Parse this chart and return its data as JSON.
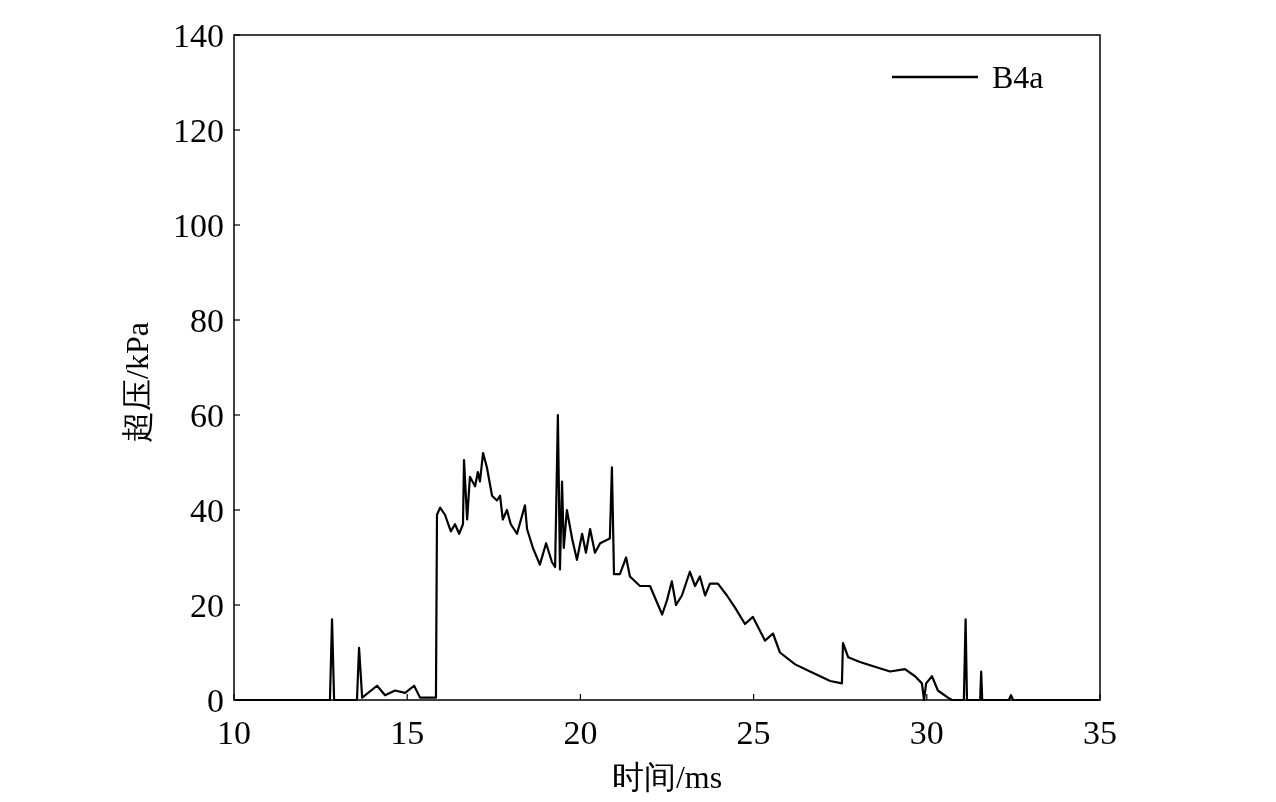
{
  "chart_data": {
    "type": "line",
    "xlabel": "时间/ms",
    "ylabel": "超压/kPa",
    "xlim": [
      10,
      35
    ],
    "ylim": [
      0,
      140
    ],
    "xticks": [
      10,
      15,
      20,
      25,
      30,
      35
    ],
    "yticks": [
      0,
      20,
      40,
      60,
      80,
      100,
      120,
      140
    ],
    "grid": false,
    "legend": "top right",
    "line_style": "solid",
    "marker": "none",
    "series": [
      {
        "name": "B4a",
        "color": "#000000",
        "x": [
          10,
          12.77,
          12.83,
          12.89,
          13.55,
          13.61,
          13.7,
          14.13,
          14.36,
          14.65,
          14.94,
          15.2,
          15.37,
          15.66,
          15.83,
          15.86,
          15.95,
          16.09,
          16.26,
          16.38,
          16.5,
          16.61,
          16.64,
          16.73,
          16.81,
          16.96,
          17.04,
          17.1,
          17.19,
          17.3,
          17.45,
          17.59,
          17.68,
          17.76,
          17.88,
          17.99,
          18.17,
          18.4,
          18.46,
          18.63,
          18.83,
          19.01,
          19.18,
          19.27,
          19.35,
          19.41,
          19.47,
          19.52,
          19.61,
          19.76,
          19.9,
          20.05,
          20.16,
          20.28,
          20.42,
          20.57,
          20.85,
          20.91,
          20.97,
          21.14,
          21.32,
          21.43,
          21.72,
          22.01,
          22.36,
          22.5,
          22.64,
          22.76,
          22.93,
          23.16,
          23.31,
          23.45,
          23.6,
          23.74,
          23.97,
          24.23,
          24.46,
          24.75,
          24.98,
          25.33,
          25.56,
          25.76,
          26.2,
          26.63,
          26.92,
          27.21,
          27.55,
          27.58,
          27.73,
          28.07,
          28.5,
          28.94,
          29.37,
          29.66,
          29.86,
          29.92,
          29.98,
          30.15,
          30.32,
          30.61,
          30.73,
          31.07,
          31.12,
          31.16,
          31.54,
          31.57,
          31.6,
          32.37,
          32.43,
          32.49,
          35
        ],
        "values": [
          0,
          0,
          17,
          0,
          0,
          11,
          0.5,
          3,
          1,
          2,
          1.5,
          3,
          0.5,
          0.5,
          0.5,
          39,
          40.5,
          39,
          35.5,
          37,
          35,
          37,
          50.5,
          38,
          47,
          45,
          48,
          46,
          52,
          49,
          43,
          42,
          43,
          38,
          40,
          37,
          35,
          41,
          36,
          32,
          28.5,
          33,
          29,
          28,
          60,
          27.5,
          46,
          32,
          40,
          34,
          29.5,
          35,
          31,
          36,
          31,
          33,
          34,
          49,
          26.5,
          26.5,
          30,
          26,
          24,
          24,
          18,
          21,
          25,
          20,
          22,
          27,
          24,
          26,
          22,
          24.5,
          24.5,
          22,
          19.5,
          16,
          17.5,
          12.5,
          14,
          10,
          7.5,
          6,
          5,
          4,
          3.5,
          12,
          9,
          8,
          7,
          6,
          6.5,
          5,
          3.5,
          0,
          3.5,
          5,
          2,
          0.5,
          0,
          0,
          17,
          0,
          0,
          6,
          0,
          0,
          1,
          0,
          0
        ]
      }
    ]
  }
}
